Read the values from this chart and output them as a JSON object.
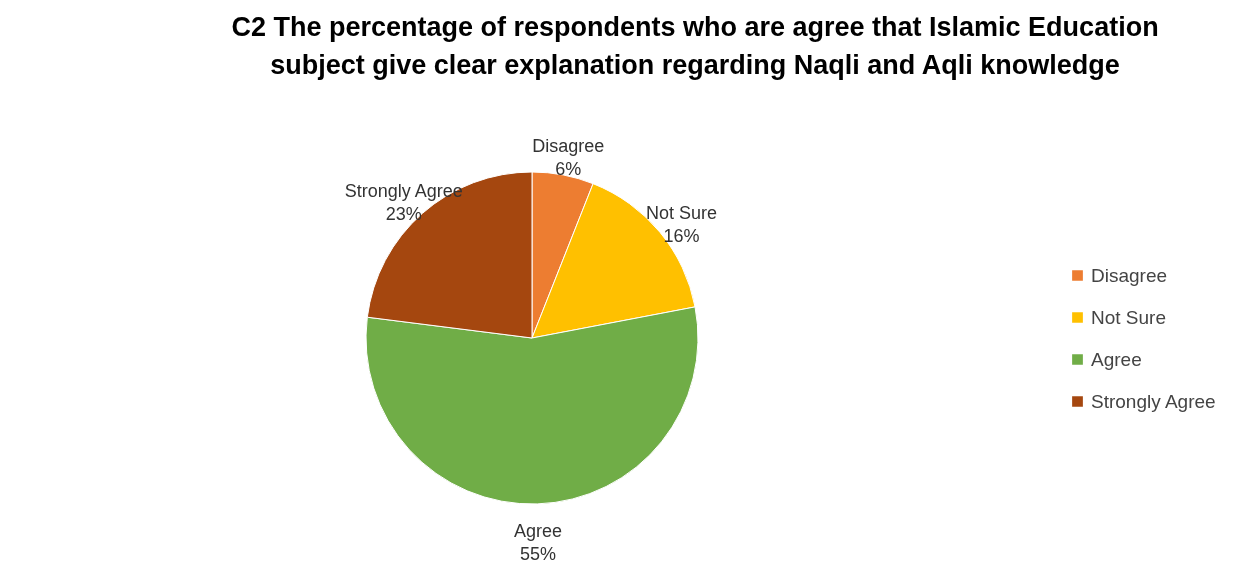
{
  "chart_data": {
    "type": "pie",
    "title": "C2 The percentage of respondents who are agree that Islamic Education subject give clear explanation regarding Naqli and Aqli knowledge",
    "categories": [
      "Disagree",
      "Not Sure",
      "Agree",
      "Strongly Agree"
    ],
    "values": [
      6,
      16,
      55,
      23
    ],
    "value_labels": [
      "6%",
      "16%",
      "55%",
      "23%"
    ],
    "colors": [
      "#ed7d31",
      "#ffc000",
      "#70ad47",
      "#a5470f"
    ],
    "legend": "right"
  }
}
